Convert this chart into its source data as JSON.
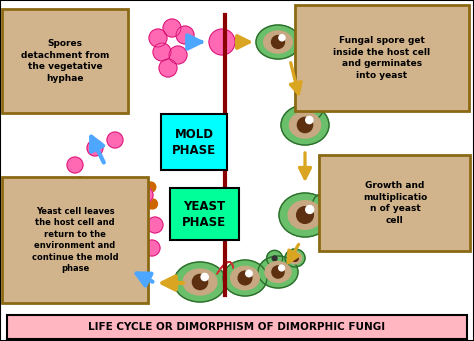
{
  "title": "LIFE CYCLE OR DIMORPHISM OF DIMORPHIC FUNGI",
  "title_bg": "#ffb6c1",
  "title_border": "#000000",
  "bg_color": "#ffffff",
  "mold_phase_text": "MOLD\nPHASE",
  "yeast_phase_text": "YEAST\nPHASE",
  "mold_phase_bg": "#00ffff",
  "yeast_phase_bg": "#00ff99",
  "label_bg": "#d2b48c",
  "label_border": "#8B6914",
  "top_left_label": "Spores\ndetachment from\nthe vegetative\nhyphae",
  "top_right_label": "Fungal spore get\ninside the host cell\nand germinates\ninto yeast",
  "bottom_right_label": "Growth and\nmultiplicatio\nn of yeast\ncell",
  "bottom_left_label": "Yeast cell leaves\nthe host cell and\nreturn to the\nenvironment and\ncontinue the mold\nphase",
  "arrow_color_blue": "#4da6ff",
  "arrow_color_gold": "#DAA520",
  "divider_color": "#8B0000",
  "hyphae_color": "#CD6600",
  "spore_mold_color": "#FF69B4",
  "yeast_outer_color": "#6abf6a",
  "yeast_inner_color": "#c8a882",
  "yeast_nucleus_color": "#5C3010"
}
